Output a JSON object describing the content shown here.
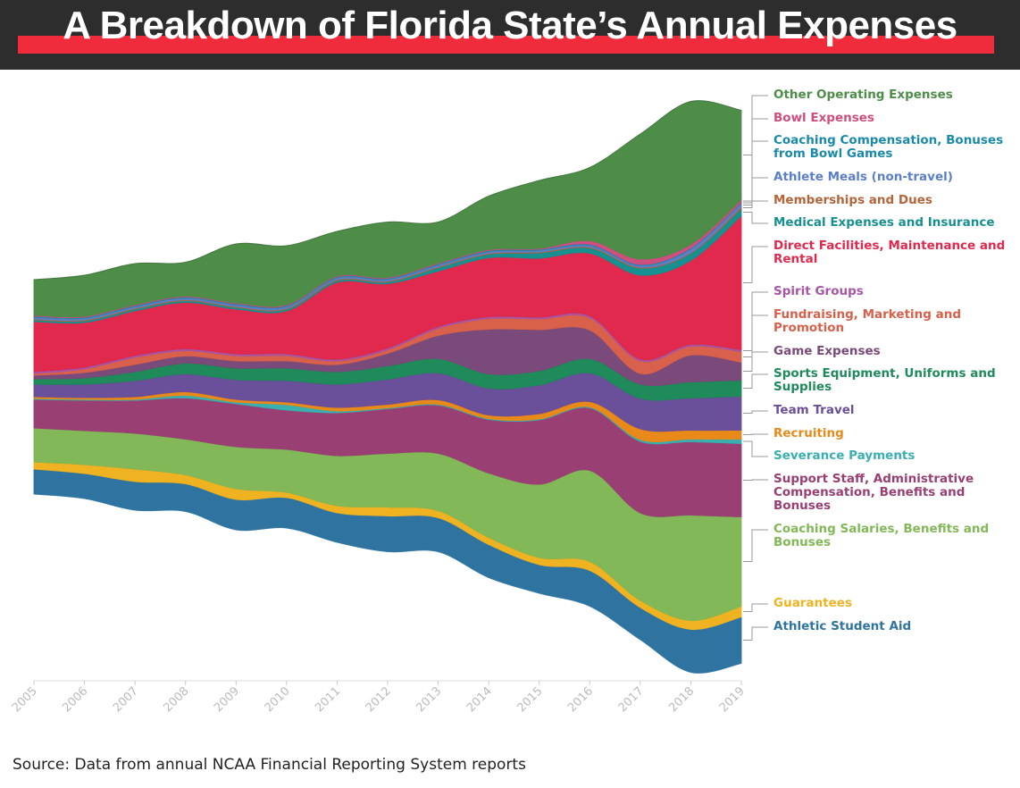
{
  "chart_data": {
    "type": "streamgraph",
    "title": "A Breakdown of Florida State’s Annual Expenses",
    "source": "Source: Data from annual NCAA Financial Reporting System reports",
    "x": [
      2005,
      2006,
      2007,
      2008,
      2009,
      2010,
      2011,
      2012,
      2013,
      2014,
      2015,
      2016,
      2017,
      2018,
      2019
    ],
    "series": [
      {
        "name": "Athletic Student Aid",
        "color": "#2f74a0",
        "values": [
          28,
          28,
          32,
          31,
          34,
          34,
          33,
          40,
          38,
          37,
          32,
          40,
          36,
          48,
          52
        ]
      },
      {
        "name": "Guarantees",
        "color": "#efb322",
        "values": [
          8,
          10,
          14,
          10,
          12,
          6,
          8,
          10,
          8,
          8,
          8,
          10,
          8,
          10,
          12
        ]
      },
      {
        "name": "Coaching Salaries, Benefits and Bonuses",
        "color": "#82b857",
        "values": [
          38,
          38,
          40,
          40,
          47,
          48,
          56,
          60,
          64,
          72,
          82,
          102,
          98,
          118,
          100
        ]
      },
      {
        "name": "Support Staff, Administrative Compensation, Benefits and Bonuses",
        "color": "#9a3f73",
        "values": [
          32,
          34,
          37,
          46,
          48,
          44,
          48,
          50,
          54,
          60,
          72,
          70,
          80,
          82,
          82
        ]
      },
      {
        "name": "Severance Payments",
        "color": "#3aafb0",
        "values": [
          1,
          1,
          1,
          3,
          2,
          6,
          2,
          1,
          1,
          1,
          1,
          1,
          2,
          3,
          5
        ]
      },
      {
        "name": "Recruiting",
        "color": "#e8891a",
        "values": [
          2,
          2,
          3,
          4,
          3,
          3,
          4,
          4,
          5,
          4,
          6,
          6,
          12,
          10,
          10
        ]
      },
      {
        "name": "Team Travel",
        "color": "#6a4f9a",
        "values": [
          14,
          15,
          18,
          20,
          22,
          24,
          26,
          28,
          30,
          30,
          32,
          32,
          34,
          36,
          38
        ]
      },
      {
        "name": "Sports Equipment, Uniforms and Supplies",
        "color": "#1f8a5a",
        "values": [
          6,
          7,
          10,
          12,
          13,
          14,
          14,
          15,
          16,
          16,
          16,
          16,
          16,
          18,
          18
        ]
      },
      {
        "name": "Game Expenses",
        "color": "#7a4a7a",
        "values": [
          4,
          6,
          8,
          8,
          8,
          8,
          8,
          14,
          26,
          50,
          46,
          32,
          12,
          30,
          20
        ]
      },
      {
        "name": "Fundraising, Marketing and Promotion",
        "color": "#d9604a",
        "values": [
          2,
          4,
          8,
          6,
          6,
          6,
          4,
          4,
          8,
          12,
          12,
          14,
          14,
          10,
          12
        ]
      },
      {
        "name": "Spirit Groups",
        "color": "#a855a8",
        "values": [
          2,
          2,
          2,
          2,
          2,
          2,
          2,
          2,
          2,
          2,
          2,
          2,
          2,
          2,
          2
        ]
      },
      {
        "name": "Direct Facilities, Maintenance and Rental",
        "color": "#e0294d",
        "values": [
          56,
          50,
          50,
          52,
          50,
          48,
          86,
          72,
          62,
          66,
          66,
          70,
          94,
          94,
          150
        ]
      },
      {
        "name": "Medical Expenses and Insurance",
        "color": "#179090",
        "values": [
          2,
          2,
          2,
          2,
          2,
          2,
          2,
          2,
          4,
          4,
          6,
          6,
          8,
          8,
          8
        ]
      },
      {
        "name": "Memberships and Dues",
        "color": "#b5653a",
        "values": [
          1,
          1,
          1,
          1,
          1,
          1,
          1,
          1,
          1,
          1,
          1,
          1,
          1,
          1,
          2
        ]
      },
      {
        "name": "Athlete Meals (non-travel)",
        "color": "#5b7fc8",
        "values": [
          2,
          2,
          2,
          2,
          2,
          2,
          2,
          2,
          2,
          2,
          2,
          2,
          2,
          4,
          4
        ]
      },
      {
        "name": "Coaching Compensation, Bonuses from Bowl Games",
        "color": "#1a8aaa",
        "values": [
          1,
          1,
          1,
          1,
          1,
          1,
          1,
          1,
          1,
          1,
          1,
          1,
          1,
          1,
          1
        ]
      },
      {
        "name": "Bowl Expenses",
        "color": "#cf4e7e",
        "values": [
          1,
          1,
          1,
          1,
          1,
          1,
          1,
          1,
          1,
          1,
          1,
          4,
          6,
          4,
          3
        ]
      },
      {
        "name": "Other Operating Expenses",
        "color": "#4e8d48",
        "values": [
          40,
          46,
          46,
          38,
          66,
          66,
          50,
          62,
          46,
          60,
          76,
          82,
          140,
          160,
          100
        ]
      }
    ]
  }
}
